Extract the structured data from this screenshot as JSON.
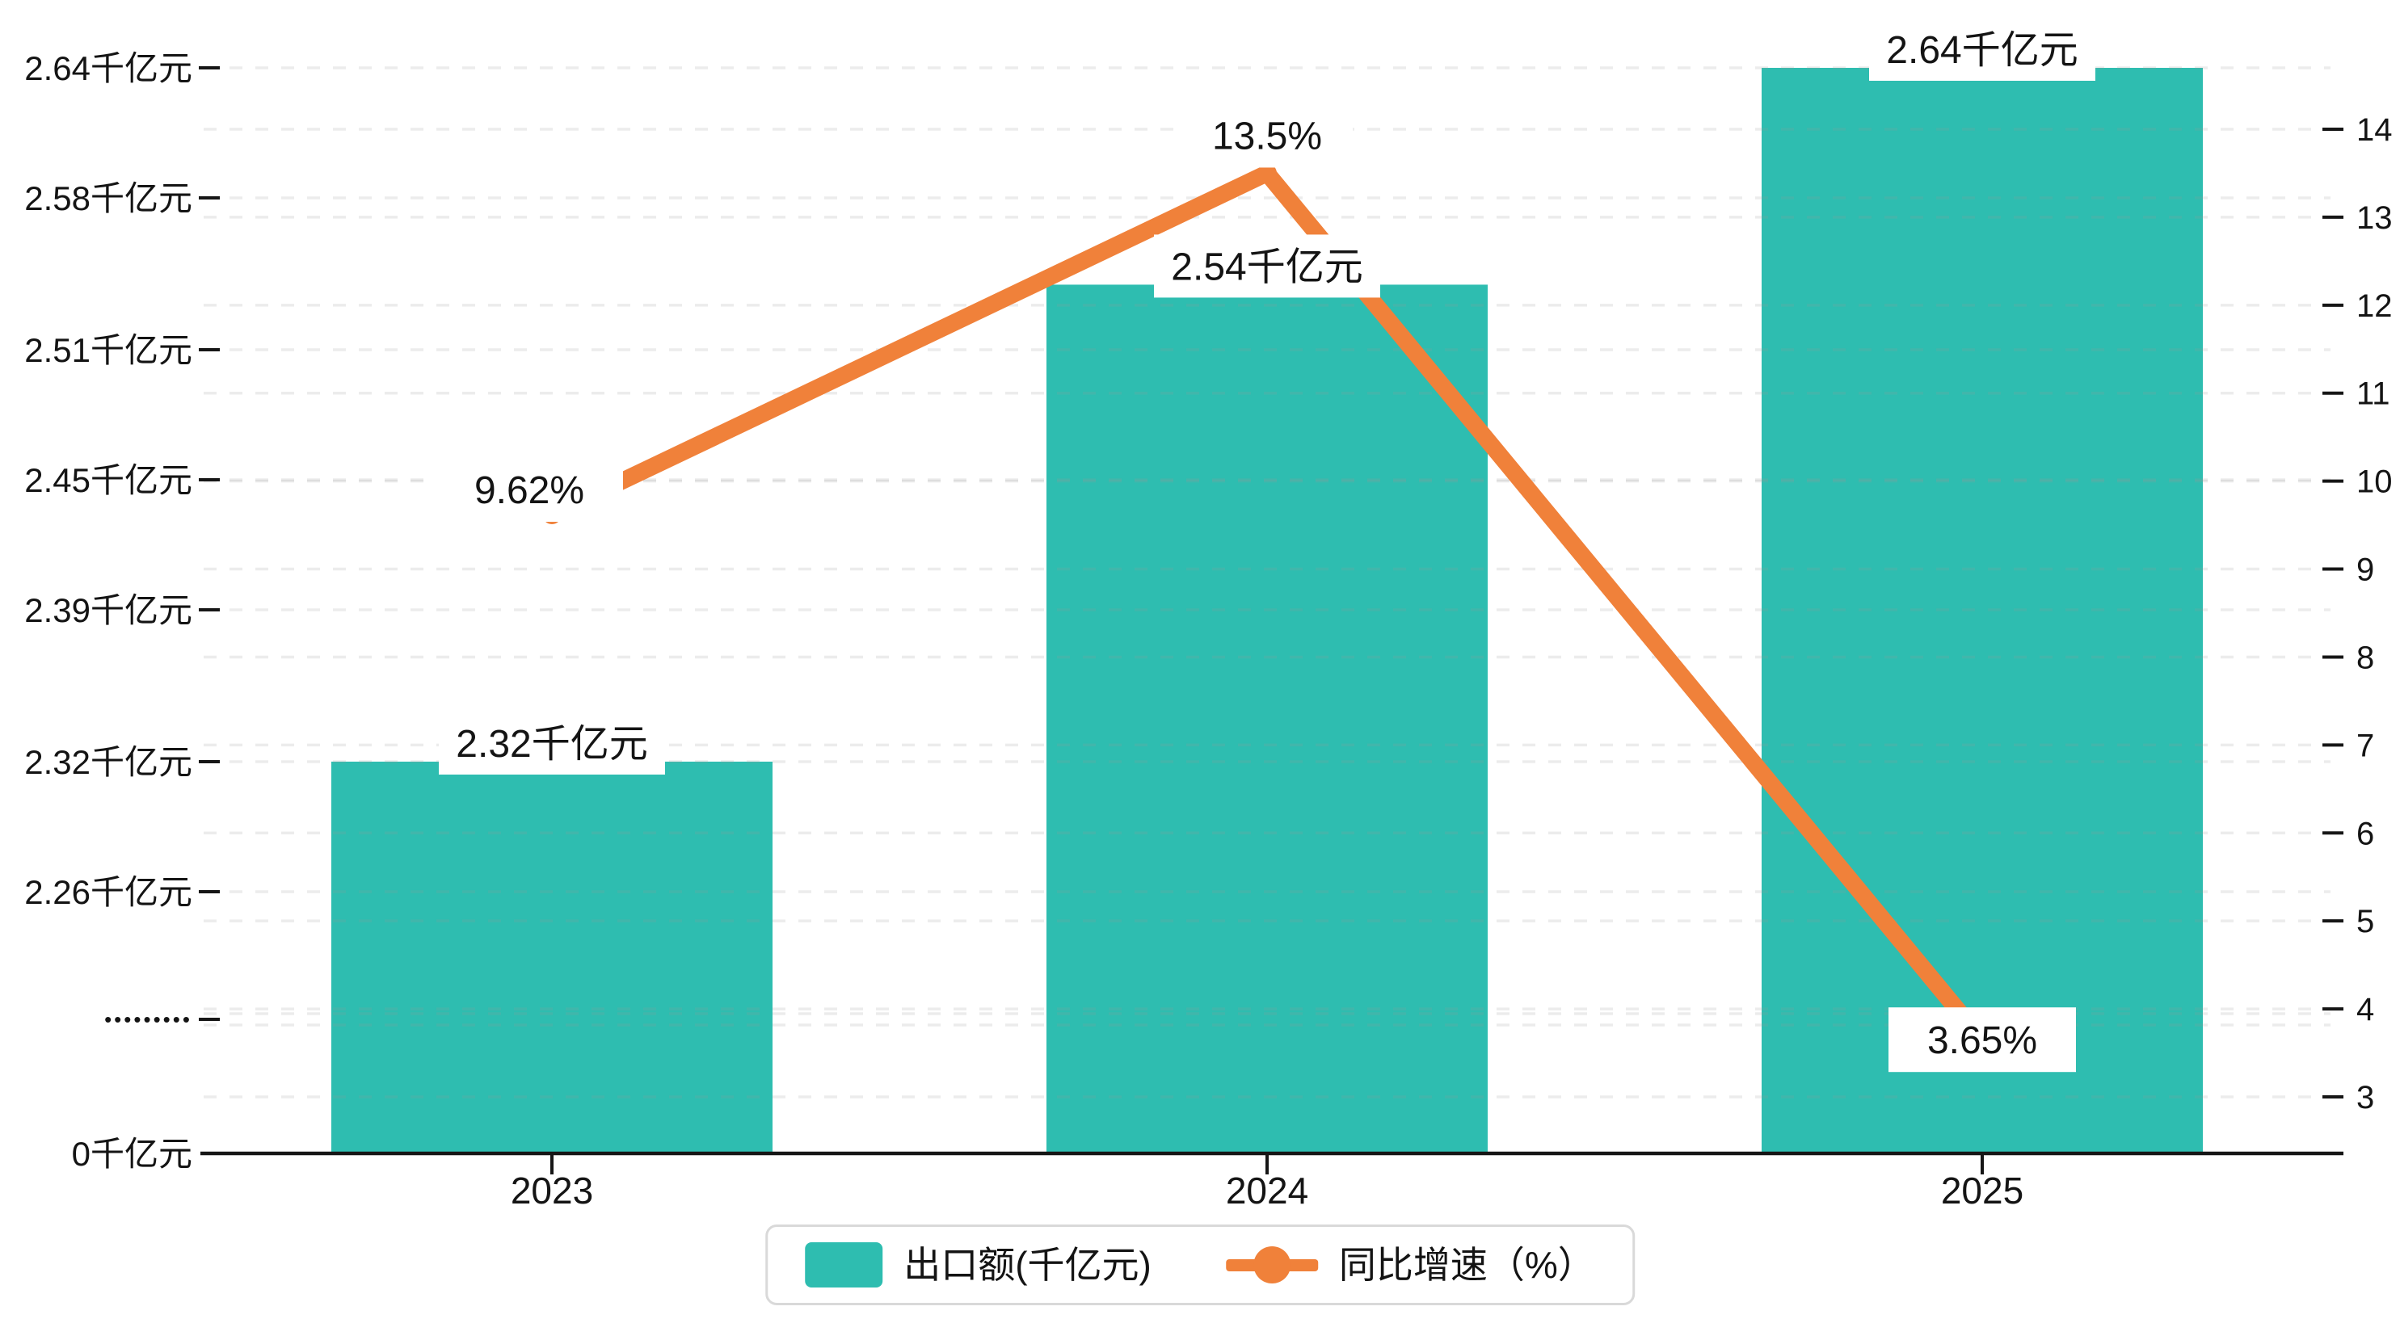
{
  "chart_data": {
    "type": "bar+line",
    "categories": [
      "2023",
      "2024",
      "2025"
    ],
    "series": [
      {
        "name": "出口额(千亿元)",
        "type": "bar",
        "axis": "left",
        "values": [
          2.32,
          2.54,
          2.64
        ],
        "data_labels": [
          "2.32千亿元",
          "2.54千亿元",
          "2.64千亿元"
        ],
        "color": "#2ebdb0"
      },
      {
        "name": "同比增速（%）",
        "type": "line",
        "axis": "right",
        "values": [
          9.62,
          13.5,
          3.65
        ],
        "data_labels": [
          "9.62%",
          "13.5%",
          "3.65%"
        ],
        "color": "#f0813a"
      }
    ],
    "left_axis": {
      "unit": "千亿元",
      "has_break": true,
      "ticks": [
        {
          "label": "2.64千亿元",
          "value": 2.64
        },
        {
          "label": "2.58千亿元",
          "value": 2.58
        },
        {
          "label": "2.51千亿元",
          "value": 2.51
        },
        {
          "label": "2.45千亿元",
          "value": 2.45
        },
        {
          "label": "2.39千亿元",
          "value": 2.39
        },
        {
          "label": "2.32千亿元",
          "value": 2.32
        },
        {
          "label": "2.26千亿元",
          "value": 2.26
        },
        {
          "label": "•••••••••",
          "value": null,
          "break": true
        },
        {
          "label": "0千亿元",
          "value": 0
        }
      ],
      "visible_range_top": [
        2.26,
        2.64
      ]
    },
    "right_axis": {
      "min": 3,
      "max": 14,
      "step": 1,
      "tick_labels": [
        "14",
        "13",
        "12",
        "11",
        "10",
        "9",
        "8",
        "7",
        "6",
        "5",
        "4",
        "3"
      ]
    },
    "grid": {
      "dashed": true
    },
    "legend_position": "bottom-center"
  },
  "legend": {
    "bar_label": "出口额(千亿元)",
    "line_label": "同比增速（%）"
  },
  "colors": {
    "bar": "#2ebdb0",
    "line": "#f0813a",
    "grid": "#9a9a9a",
    "axis": "#161616",
    "text": "#141414",
    "label_bg": "#ffffff"
  }
}
